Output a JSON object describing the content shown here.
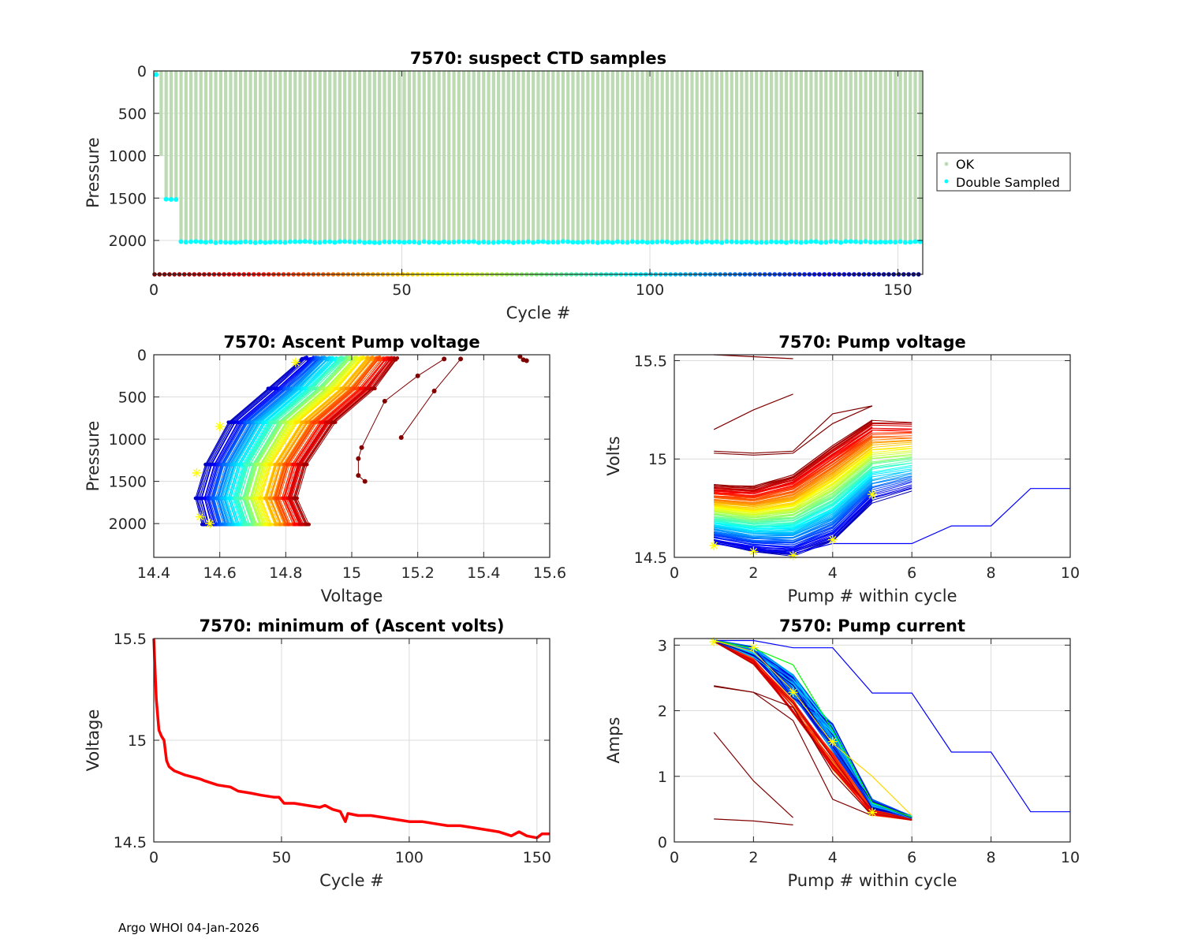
{
  "footer": "Argo WHOI 04-Jan-2026",
  "colors": {
    "ok": "#bcdbb3",
    "double_sampled": "#00ffff",
    "min_volts_line": "#ff0000",
    "marker_star": "#ffff00",
    "grid": "#dcdcdc",
    "axis": "#262626"
  },
  "chart_data": [
    {
      "id": "suspect-ctd",
      "type": "scatter",
      "title": "7570: suspect CTD samples",
      "xlabel": "Cycle #",
      "ylabel": "Pressure",
      "xlim": [
        0,
        155
      ],
      "ylim": [
        0,
        2400
      ],
      "y_reversed": true,
      "xticks": [
        0,
        50,
        100,
        150
      ],
      "yticks": [
        0,
        500,
        1000,
        1500,
        2000
      ],
      "grid": true,
      "legend": {
        "placement": "outside-right",
        "entries": [
          "OK",
          "Double Sampled"
        ]
      },
      "n_cycles": 155,
      "ok_profile_top": 0,
      "ok_profile_bottom_by_segment": [
        {
          "cycles": [
            0,
            0
          ],
          "bottom": 50
        },
        {
          "cycles": [
            1,
            1
          ],
          "bottom": 1000
        },
        {
          "cycles": [
            2,
            4
          ],
          "bottom": 1510
        },
        {
          "cycles": [
            5,
            154
          ],
          "bottom": 2020
        }
      ],
      "double_sampled_points": [
        {
          "cycles": [
            0,
            0
          ],
          "pressure": 50
        },
        {
          "cycles": [
            2,
            4
          ],
          "pressure": 1510
        },
        {
          "cycles": [
            5,
            154
          ],
          "pressure": 2020
        }
      ],
      "cycle_marker_row_pressure": 2400,
      "cycle_marker_colormap": "jet-reversed (dark red at cycle 0 to dark blue at cycle 154)"
    },
    {
      "id": "ascent-pump-voltage",
      "type": "line",
      "title": "7570: Ascent Pump voltage",
      "xlabel": "Voltage",
      "ylabel": "Pressure",
      "xlim": [
        14.4,
        15.6
      ],
      "ylim": [
        0,
        2400
      ],
      "y_reversed": true,
      "xticks": [
        14.4,
        14.6,
        14.8,
        15,
        15.2,
        15.4,
        15.6
      ],
      "yticks": [
        0,
        500,
        1000,
        1500,
        2000
      ],
      "grid": true,
      "series_description": "One profile per cycle, colored by cycle (jet colormap); later cycles shift to lower voltage",
      "series_envelope": {
        "earliest_cycles_top": [
          [
            15.05,
            50
          ],
          [
            15.2,
            60
          ],
          [
            15.23,
            80
          ]
        ],
        "latest_cycles_left_edge": [
          [
            14.85,
            0
          ],
          [
            14.62,
            800
          ],
          [
            14.52,
            1600
          ],
          [
            14.55,
            2000
          ]
        ],
        "bottom_range": [
          14.55,
          14.87
        ]
      },
      "outlier_profiles": [
        {
          "points": [
            [
              15.28,
              50
            ],
            [
              15.2,
              250
            ],
            [
              15.1,
              550
            ],
            [
              15.03,
              1100
            ],
            [
              15.02,
              1230
            ],
            [
              15.02,
              1430
            ],
            [
              15.04,
              1500
            ]
          ]
        },
        {
          "points": [
            [
              15.33,
              50
            ],
            [
              15.25,
              430
            ],
            [
              15.15,
              980
            ]
          ]
        },
        {
          "points": [
            [
              15.51,
              20
            ],
            [
              15.52,
              60
            ],
            [
              15.53,
              70
            ]
          ]
        }
      ],
      "star_markers": [
        [
          14.83,
          90
        ],
        [
          14.6,
          850
        ],
        [
          14.53,
          1400
        ],
        [
          14.54,
          1920
        ],
        [
          14.57,
          2000
        ]
      ]
    },
    {
      "id": "pump-voltage",
      "type": "line",
      "title": "7570: Pump voltage",
      "xlabel": "Pump # within cycle",
      "ylabel": "Volts",
      "xlim": [
        0,
        10
      ],
      "ylim": [
        14.5,
        15.53
      ],
      "xticks": [
        0,
        2,
        4,
        6,
        8,
        10
      ],
      "yticks": [
        14.5,
        15,
        15.5
      ],
      "grid": true,
      "series_description": "One line per cycle, colored by cycle (jet colormap)",
      "representative_series": [
        {
          "name": "early-a",
          "color": "#800000",
          "x": [
            1,
            2,
            3
          ],
          "y": [
            15.53,
            15.52,
            15.51
          ]
        },
        {
          "name": "early-b",
          "color": "#800000",
          "x": [
            1,
            2,
            3
          ],
          "y": [
            15.15,
            15.25,
            15.33
          ]
        },
        {
          "name": "early-c",
          "color": "#800000",
          "x": [
            1,
            2,
            3,
            4,
            5
          ],
          "y": [
            15.04,
            15.03,
            15.04,
            15.23,
            15.27
          ]
        },
        {
          "name": "early-d",
          "color": "#800000",
          "x": [
            1,
            2,
            3,
            4,
            5
          ],
          "y": [
            15.03,
            15.02,
            15.03,
            15.18,
            15.27
          ]
        },
        {
          "name": "late-blue",
          "color": "#0000ff",
          "x": [
            1,
            2,
            3,
            4,
            5,
            6,
            7,
            8,
            9,
            10
          ],
          "y": [
            14.57,
            14.54,
            14.52,
            14.57,
            14.57,
            14.57,
            14.66,
            14.66,
            14.85,
            14.85
          ]
        }
      ],
      "band": {
        "x": [
          1,
          2,
          3,
          4,
          5,
          6
        ],
        "top": [
          14.87,
          14.86,
          14.92,
          15.07,
          15.2,
          15.19
        ],
        "bottom": [
          14.57,
          14.53,
          14.51,
          14.58,
          14.78,
          14.84
        ]
      },
      "star_markers": [
        [
          1,
          14.56
        ],
        [
          2,
          14.53
        ],
        [
          3,
          14.51
        ],
        [
          4,
          14.59
        ],
        [
          5,
          14.82
        ]
      ]
    },
    {
      "id": "minimum-ascent-volts",
      "type": "line",
      "title": "7570: minimum of (Ascent volts)",
      "xlabel": "Cycle #",
      "ylabel": "Voltage",
      "xlim": [
        0,
        155
      ],
      "ylim": [
        14.5,
        15.5
      ],
      "xticks": [
        0,
        50,
        100,
        150
      ],
      "yticks": [
        14.5,
        15,
        15.5
      ],
      "grid": true,
      "series": [
        {
          "name": "minimum ascent volts",
          "x": [
            0,
            1,
            2,
            3,
            4,
            5,
            6,
            8,
            10,
            12,
            15,
            18,
            20,
            25,
            30,
            33,
            38,
            42,
            47,
            49,
            51,
            55,
            60,
            65,
            67,
            70,
            73,
            75,
            76,
            80,
            85,
            90,
            95,
            100,
            105,
            110,
            115,
            120,
            125,
            130,
            135,
            140,
            143,
            146,
            150,
            152,
            155
          ],
          "y": [
            15.5,
            15.2,
            15.05,
            15.02,
            15.0,
            14.9,
            14.87,
            14.85,
            14.84,
            14.83,
            14.82,
            14.81,
            14.8,
            14.78,
            14.77,
            14.75,
            14.74,
            14.73,
            14.72,
            14.72,
            14.69,
            14.69,
            14.68,
            14.67,
            14.68,
            14.66,
            14.65,
            14.6,
            14.64,
            14.63,
            14.63,
            14.62,
            14.61,
            14.6,
            14.6,
            14.59,
            14.58,
            14.58,
            14.57,
            14.56,
            14.55,
            14.53,
            14.55,
            14.53,
            14.52,
            14.54,
            14.54
          ]
        }
      ]
    },
    {
      "id": "pump-current",
      "type": "line",
      "title": "7570: Pump current",
      "xlabel": "Pump # within cycle",
      "ylabel": "Amps",
      "xlim": [
        0,
        10
      ],
      "ylim": [
        0,
        3.1
      ],
      "xticks": [
        0,
        2,
        4,
        6,
        8,
        10
      ],
      "yticks": [
        0,
        1,
        2,
        3
      ],
      "grid": true,
      "series_description": "One line per cycle, colored by cycle (jet colormap)",
      "representative_series": [
        {
          "name": "early-a",
          "color": "#800000",
          "x": [
            1,
            2,
            3
          ],
          "y": [
            0.35,
            0.32,
            0.26
          ]
        },
        {
          "name": "early-b",
          "color": "#800000",
          "x": [
            1,
            2,
            3
          ],
          "y": [
            1.67,
            0.93,
            0.37
          ]
        },
        {
          "name": "early-c",
          "color": "#800000",
          "x": [
            1,
            2,
            3,
            4,
            5
          ],
          "y": [
            2.38,
            2.28,
            2.05,
            1.05,
            0.4
          ]
        },
        {
          "name": "early-d",
          "color": "#800000",
          "x": [
            1,
            2,
            3,
            4,
            5
          ],
          "y": [
            2.37,
            2.28,
            1.85,
            0.65,
            0.4
          ]
        },
        {
          "name": "late-blue",
          "color": "#0000ff",
          "x": [
            1,
            2,
            3,
            4,
            5,
            6,
            7,
            8,
            9,
            10
          ],
          "y": [
            3.07,
            3.07,
            2.96,
            2.96,
            2.27,
            2.27,
            1.37,
            1.37,
            0.46,
            0.46
          ]
        },
        {
          "name": "green-outlier",
          "color": "#00ff00",
          "x": [
            1,
            2,
            3,
            4,
            5,
            6
          ],
          "y": [
            3.07,
            2.95,
            2.7,
            1.7,
            0.6,
            0.38
          ]
        },
        {
          "name": "yellow-outlier",
          "color": "#ffd700",
          "x": [
            1,
            2,
            3,
            4,
            5,
            6
          ],
          "y": [
            3.07,
            2.9,
            2.3,
            1.5,
            1.0,
            0.4
          ]
        }
      ],
      "band": {
        "x": [
          1,
          2,
          3,
          4,
          5,
          6
        ],
        "top": [
          3.08,
          2.98,
          2.55,
          1.8,
          0.65,
          0.4
        ],
        "bottom": [
          3.05,
          2.7,
          1.95,
          1.1,
          0.4,
          0.33
        ]
      },
      "star_markers": [
        [
          1,
          3.05
        ],
        [
          2,
          2.96
        ],
        [
          3,
          2.28
        ],
        [
          4,
          1.53
        ],
        [
          5,
          0.45
        ]
      ]
    }
  ]
}
